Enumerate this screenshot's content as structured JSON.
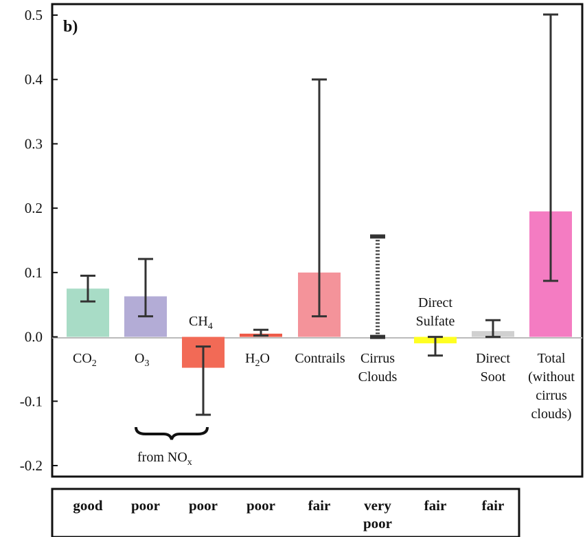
{
  "chart_data": {
    "type": "bar",
    "panel_label": "b)",
    "ylim": [
      -0.2,
      0.5
    ],
    "yticks": [
      "0.5",
      "0.4",
      "0.3",
      "0.2",
      "0.1",
      "0.0",
      "-0.1",
      "-0.2"
    ],
    "ytick_values": [
      0.5,
      0.4,
      0.3,
      0.2,
      0.1,
      0.0,
      -0.1,
      -0.2
    ],
    "categories": [
      {
        "label": "CO2",
        "value": 0.075,
        "err_low": 0.055,
        "err_high": 0.095,
        "color": "#a8dcc6"
      },
      {
        "label": "O3",
        "value": 0.063,
        "err_low": 0.032,
        "err_high": 0.121,
        "color": "#b3acd6"
      },
      {
        "label": "CH4",
        "value": -0.048,
        "err_low": -0.121,
        "err_high": -0.015,
        "color": "#f26a56"
      },
      {
        "label": "H2O",
        "value": 0.005,
        "err_low": 0.002,
        "err_high": 0.011,
        "color": "#ee5a48"
      },
      {
        "label": "Contrails",
        "value": 0.1,
        "err_low": 0.032,
        "err_high": 0.4,
        "color": "#f4939a"
      },
      {
        "label": "Cirrus Clouds",
        "value": null,
        "err_low": 0.0,
        "err_high": 0.156,
        "color": "#333333"
      },
      {
        "label": "Direct Sulfate",
        "value": -0.01,
        "err_low": -0.029,
        "err_high": 0.0,
        "color": "#ffff22"
      },
      {
        "label": "Direct Soot",
        "value": 0.009,
        "err_low": 0.0,
        "err_high": 0.026,
        "color": "#d0d0d0"
      },
      {
        "label": "Total (without cirrus clouds)",
        "value": 0.195,
        "err_low": 0.087,
        "err_high": 0.501,
        "color": "#f47cc2"
      }
    ],
    "bar_labels": {
      "co2": "CO",
      "co2_sub": "2",
      "o3": "O",
      "o3_sub": "3",
      "ch4": "CH",
      "ch4_sub": "4",
      "h2o_a": "H",
      "h2o_sub": "2",
      "h2o_b": "O",
      "contrails": "Contrails",
      "cirrus_1": "Cirrus",
      "cirrus_2": "Clouds",
      "sulfate_1": "Direct",
      "sulfate_2": "Sulfate",
      "soot_1": "Direct",
      "soot_2": "Soot",
      "total_1": "Total",
      "total_2": "(without",
      "total_3": "cirrus",
      "total_4": "clouds)",
      "nox_prefix": "from NO",
      "nox_sub": "x"
    },
    "understanding": [
      "good",
      "poor",
      "poor",
      "poor",
      "fair",
      "very poor",
      "fair",
      "fair"
    ]
  }
}
